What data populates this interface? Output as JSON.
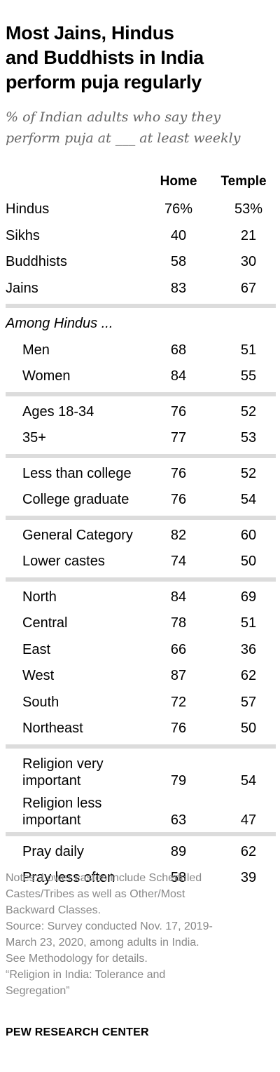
{
  "header": {
    "title_lines": [
      "Most Jains, Hindus",
      "and Buddhists in India",
      "perform puja regularly"
    ],
    "subtitle_lines": [
      "% of Indian adults who say they",
      "perform puja at ___ at least weekly"
    ]
  },
  "chart_data": {
    "type": "table",
    "columns": [
      "Home",
      "Temple"
    ],
    "groups": [
      {
        "label": "",
        "rows": [
          {
            "label": [
              "Hindus"
            ],
            "home": "76%",
            "temple": "53%"
          },
          {
            "label": [
              "Sikhs"
            ],
            "home": "40",
            "temple": "21"
          },
          {
            "label": [
              "Buddhists"
            ],
            "home": "58",
            "temple": "30"
          },
          {
            "label": [
              "Jains"
            ],
            "home": "83",
            "temple": "67"
          }
        ]
      },
      {
        "label": "Among Hindus ...",
        "rows": [
          {
            "label": [
              "Men"
            ],
            "home": "68",
            "temple": "51"
          },
          {
            "label": [
              "Women"
            ],
            "home": "84",
            "temple": "55"
          }
        ]
      },
      {
        "label": "",
        "rows": [
          {
            "label": [
              "Ages 18-34"
            ],
            "home": "76",
            "temple": "52"
          },
          {
            "label": [
              "35+"
            ],
            "home": "77",
            "temple": "53"
          }
        ]
      },
      {
        "label": "",
        "rows": [
          {
            "label": [
              "Less than college"
            ],
            "home": "76",
            "temple": "52"
          },
          {
            "label": [
              "College graduate"
            ],
            "home": "76",
            "temple": "54"
          }
        ]
      },
      {
        "label": "",
        "rows": [
          {
            "label": [
              "General Category"
            ],
            "home": "82",
            "temple": "60"
          },
          {
            "label": [
              "Lower castes"
            ],
            "home": "74",
            "temple": "50"
          }
        ]
      },
      {
        "label": "",
        "rows": [
          {
            "label": [
              "North"
            ],
            "home": "84",
            "temple": "69"
          },
          {
            "label": [
              "Central"
            ],
            "home": "78",
            "temple": "51"
          },
          {
            "label": [
              "East"
            ],
            "home": "66",
            "temple": "36"
          },
          {
            "label": [
              "West"
            ],
            "home": "87",
            "temple": "62"
          },
          {
            "label": [
              "South"
            ],
            "home": "72",
            "temple": "57"
          },
          {
            "label": [
              "Northeast"
            ],
            "home": "76",
            "temple": "50"
          }
        ]
      },
      {
        "label": "",
        "rows": [
          {
            "label": [
              "Religion very",
              "important"
            ],
            "home": "79",
            "temple": "54"
          },
          {
            "label": [
              "Religion less",
              "important"
            ],
            "home": "63",
            "temple": "47"
          }
        ]
      },
      {
        "label": "",
        "rows": [
          {
            "label": [
              "Pray daily"
            ],
            "home": "89",
            "temple": "62"
          },
          {
            "label": [
              "Pray less often"
            ],
            "home": "58",
            "temple": "39"
          }
        ]
      }
    ]
  },
  "footer": {
    "notes_lines": [
      "Notes: Lower castes include Scheduled",
      "Castes/Tribes as well as Other/Most",
      "Backward Classes.",
      "Source: Survey conducted Nov. 17, 2019-",
      "March 23, 2020, among adults in India.",
      "See Methodology for details.",
      "“Religion in India: Tolerance and",
      "Segregation”"
    ],
    "brand": "PEW RESEARCH CENTER"
  }
}
